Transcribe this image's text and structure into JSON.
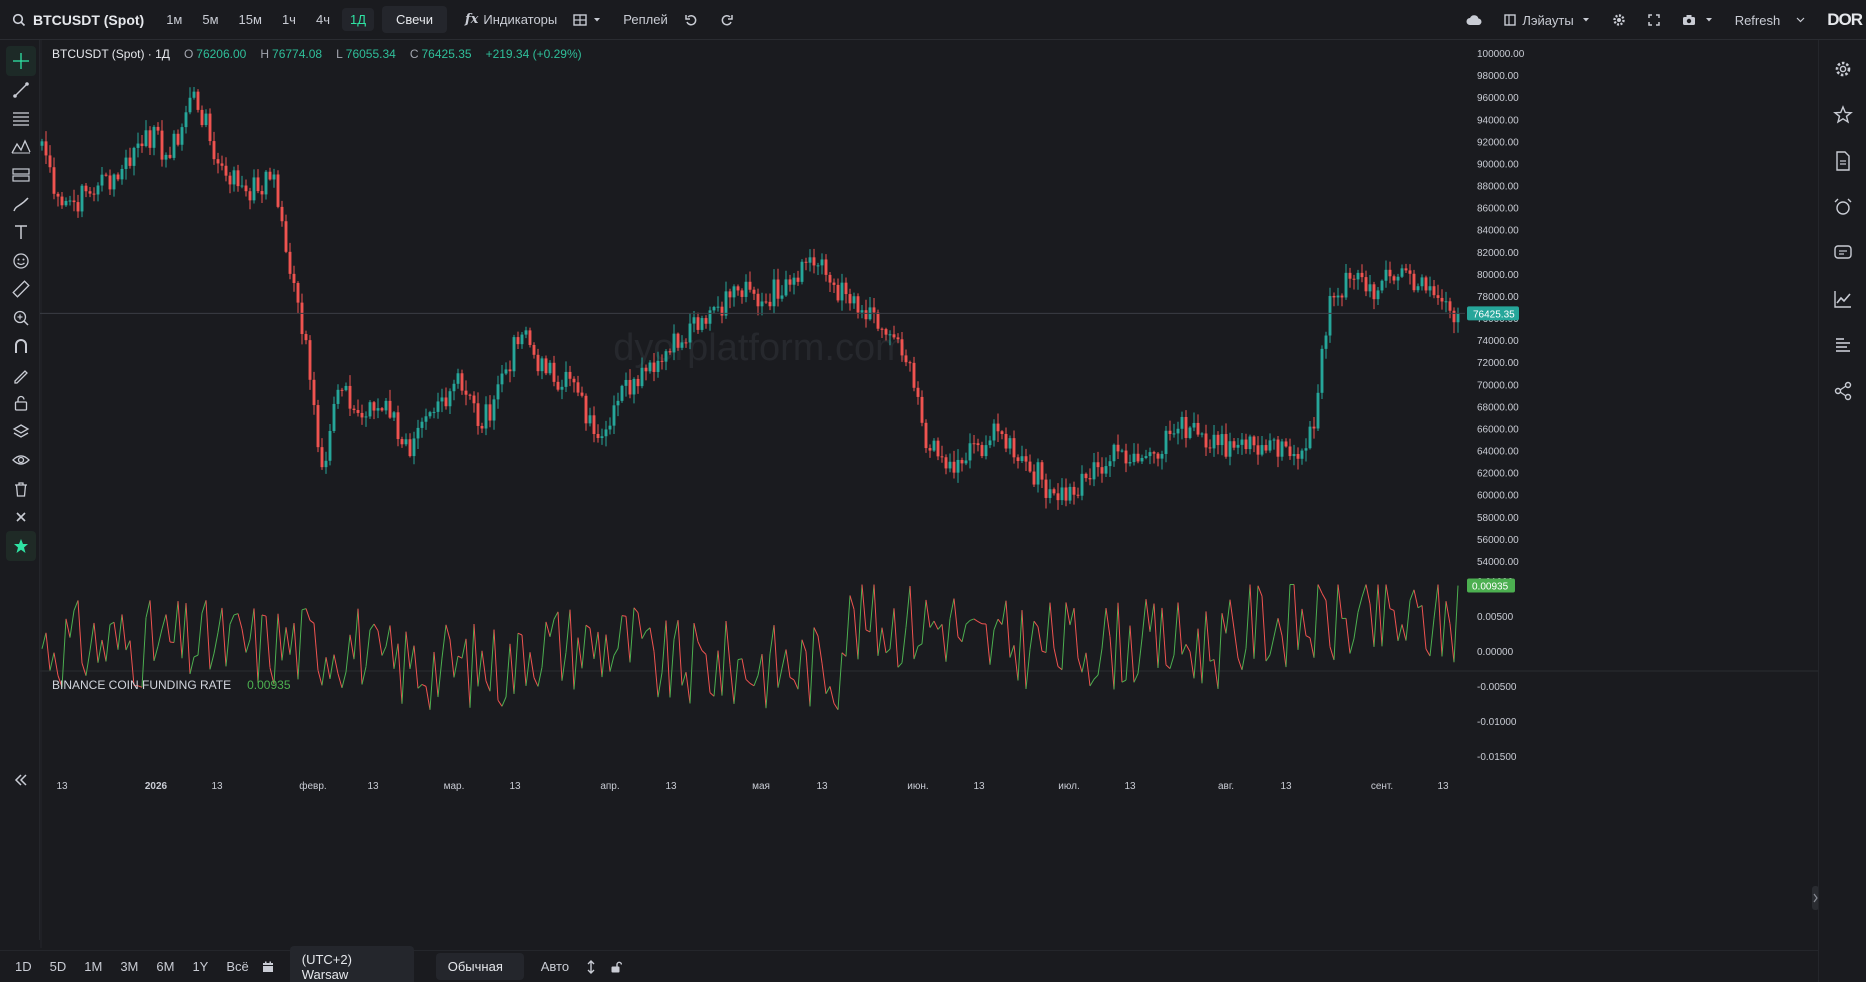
{
  "symbol": {
    "name": "BTCUSDT (Spot)"
  },
  "timeframes": [
    "1м",
    "5м",
    "15м",
    "1ч",
    "4ч",
    "1Д"
  ],
  "active_timeframe": "1Д",
  "chart_style": "Свечи",
  "toolbar": {
    "indicators": "Индикаторы",
    "replay": "Реплей",
    "layouts": "Лэйауты",
    "refresh": "Refresh",
    "logo": "DOR"
  },
  "legend": {
    "title": "BTCUSDT (Spot) · 1Д",
    "o_label": "O",
    "o": "76206.00",
    "h_label": "H",
    "h": "76774.08",
    "l_label": "L",
    "l": "76055.34",
    "c_label": "C",
    "c": "76425.35",
    "change": "+219.34 (+0.29%)"
  },
  "indicator": {
    "name": "BINANCE COIN FUNDING RATE",
    "value": "0.00935"
  },
  "watermark": "dyorplatform.com",
  "colors": {
    "up": "#26a69a",
    "down": "#ef5350",
    "accent": "#2fe3a3",
    "bg": "#1a1b1f",
    "ind_up": "#4caf50",
    "ind_down": "#ef5350"
  },
  "bottom": {
    "ranges": [
      "1D",
      "5D",
      "1M",
      "3M",
      "6M",
      "1Y",
      "Всё"
    ],
    "timezone": "(UTC+2) Warsaw",
    "scale_mode": "Обычная",
    "auto": "Авто"
  },
  "chart_data": {
    "type": "candlestick",
    "price_axis": {
      "min": 54000,
      "max": 100000,
      "step": 2000,
      "labels": [
        "100000.00",
        "98000.00",
        "96000.00",
        "94000.00",
        "92000.00",
        "90000.00",
        "88000.00",
        "86000.00",
        "84000.00",
        "82000.00",
        "80000.00",
        "78000.00",
        "76000.00",
        "74000.00",
        "72000.00",
        "70000.00",
        "68000.00",
        "66000.00",
        "64000.00",
        "62000.00",
        "60000.00",
        "58000.00",
        "56000.00",
        "54000.00"
      ]
    },
    "last_price": "76425.35",
    "time_axis": {
      "labels": [
        "13",
        "2026",
        "13",
        "февр.",
        "13",
        "мар.",
        "13",
        "апр.",
        "13",
        "мая",
        "13",
        "июн.",
        "13",
        "июл.",
        "13",
        "авг.",
        "13",
        "сент.",
        "13"
      ]
    },
    "closes_keypoints": [
      [
        0,
        92000
      ],
      [
        4,
        87000
      ],
      [
        8,
        86500
      ],
      [
        14,
        88000
      ],
      [
        20,
        89500
      ],
      [
        26,
        93000
      ],
      [
        32,
        90500
      ],
      [
        38,
        96500
      ],
      [
        44,
        90000
      ],
      [
        50,
        88000
      ],
      [
        54,
        87500
      ],
      [
        58,
        89000
      ],
      [
        62,
        80000
      ],
      [
        66,
        74000
      ],
      [
        70,
        62500
      ],
      [
        74,
        69500
      ],
      [
        80,
        67000
      ],
      [
        86,
        68500
      ],
      [
        92,
        63500
      ],
      [
        98,
        67500
      ],
      [
        104,
        71000
      ],
      [
        110,
        66000
      ],
      [
        114,
        70000
      ],
      [
        120,
        74500
      ],
      [
        126,
        71000
      ],
      [
        132,
        70500
      ],
      [
        138,
        65500
      ],
      [
        144,
        68500
      ],
      [
        150,
        71500
      ],
      [
        156,
        73000
      ],
      [
        162,
        75500
      ],
      [
        168,
        77000
      ],
      [
        174,
        78500
      ],
      [
        180,
        77500
      ],
      [
        186,
        79500
      ],
      [
        192,
        81500
      ],
      [
        198,
        79000
      ],
      [
        204,
        76500
      ],
      [
        210,
        75000
      ],
      [
        216,
        72000
      ],
      [
        222,
        64000
      ],
      [
        228,
        62000
      ],
      [
        234,
        64500
      ],
      [
        240,
        65500
      ],
      [
        246,
        63000
      ],
      [
        252,
        60500
      ],
      [
        258,
        60000
      ],
      [
        264,
        62500
      ],
      [
        270,
        64000
      ],
      [
        276,
        63500
      ],
      [
        282,
        65500
      ],
      [
        288,
        66500
      ],
      [
        294,
        64500
      ],
      [
        300,
        65000
      ],
      [
        306,
        64000
      ],
      [
        312,
        63500
      ],
      [
        318,
        66000
      ],
      [
        322,
        78000
      ],
      [
        328,
        79500
      ],
      [
        334,
        78500
      ],
      [
        340,
        80500
      ],
      [
        346,
        78500
      ],
      [
        350,
        77500
      ],
      [
        354,
        76425
      ]
    ],
    "indicator_axis": {
      "min": -0.018,
      "max": 0.012,
      "labels": [
        "0.01000",
        "0.00500",
        "0.00000",
        "-0.00500",
        "-0.01000",
        "-0.01500"
      ]
    },
    "indicator_last": "0.00935"
  }
}
